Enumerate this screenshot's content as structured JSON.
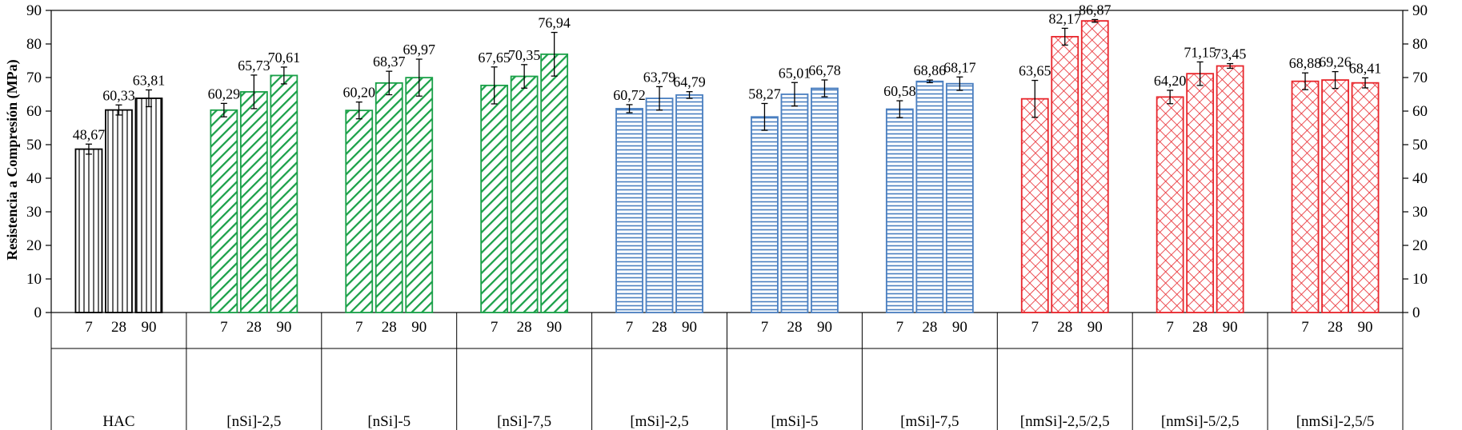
{
  "chart_data": {
    "type": "bar",
    "ylabel": "Resistencia a Compresión (MPa)",
    "ylim": [
      0,
      90
    ],
    "ytick_step": 10,
    "yticks": [
      "0",
      "10",
      "20",
      "30",
      "40",
      "50",
      "60",
      "70",
      "80",
      "90"
    ],
    "grid": false,
    "ages": [
      "7",
      "28",
      "90"
    ],
    "groups": [
      {
        "name": "HAC",
        "pattern": "none",
        "color": "#000000",
        "values": [
          48.67,
          60.33,
          63.81
        ],
        "labels": [
          "48,67",
          "60,33",
          "63,81"
        ],
        "errors": [
          1.5,
          1.5,
          2.5
        ]
      },
      {
        "name": "[nSi]-2,5",
        "pattern": "diagonal",
        "color": "#1aa048",
        "values": [
          60.29,
          65.73,
          70.61
        ],
        "labels": [
          "60,29",
          "65,73",
          "70,61"
        ],
        "errors": [
          2.0,
          5.0,
          2.5
        ]
      },
      {
        "name": "[nSi]-5",
        "pattern": "diagonal",
        "color": "#1aa048",
        "values": [
          60.2,
          68.37,
          69.97
        ],
        "labels": [
          "60,20",
          "68,37",
          "69,97"
        ],
        "errors": [
          2.5,
          3.5,
          5.5
        ]
      },
      {
        "name": "[nSi]-7,5",
        "pattern": "diagonal",
        "color": "#1aa048",
        "values": [
          67.65,
          70.35,
          76.94
        ],
        "labels": [
          "67,65",
          "70,35",
          "76,94"
        ],
        "errors": [
          5.5,
          3.5,
          6.5
        ]
      },
      {
        "name": "[mSi]-2,5",
        "pattern": "horizontal",
        "color": "#4a7fc0",
        "values": [
          60.72,
          63.79,
          64.79
        ],
        "labels": [
          "60,72",
          "63,79",
          "64,79"
        ],
        "errors": [
          1.2,
          3.5,
          1.0
        ]
      },
      {
        "name": "[mSi]-5",
        "pattern": "horizontal",
        "color": "#4a7fc0",
        "values": [
          58.27,
          65.01,
          66.78
        ],
        "labels": [
          "58,27",
          "65,01",
          "66,78"
        ],
        "errors": [
          4.0,
          3.5,
          2.5
        ]
      },
      {
        "name": "[mSi]-7,5",
        "pattern": "horizontal",
        "color": "#4a7fc0",
        "values": [
          60.58,
          68.86,
          68.17
        ],
        "labels": [
          "60,58",
          "68,86",
          "68,17"
        ],
        "errors": [
          2.5,
          0.4,
          2.0
        ]
      },
      {
        "name": "[nmSi]-2,5/2,5",
        "pattern": "crosshatch",
        "color": "#e8262c",
        "values": [
          63.65,
          82.17,
          86.87
        ],
        "labels": [
          "63,65",
          "82,17",
          "86,87"
        ],
        "errors": [
          5.5,
          2.5,
          0.4
        ]
      },
      {
        "name": "[nmSi]-5/2,5",
        "pattern": "crosshatch",
        "color": "#e8262c",
        "values": [
          64.2,
          71.15,
          73.45
        ],
        "labels": [
          "64,20",
          "71,15",
          "73,45"
        ],
        "errors": [
          2.0,
          3.5,
          0.7
        ]
      },
      {
        "name": "[nmSi]-2,5/5",
        "pattern": "crosshatch",
        "color": "#e8262c",
        "values": [
          68.88,
          69.26,
          68.41
        ],
        "labels": [
          "68,88",
          "69,26",
          "68,41"
        ],
        "errors": [
          2.5,
          2.5,
          1.5
        ]
      }
    ]
  }
}
